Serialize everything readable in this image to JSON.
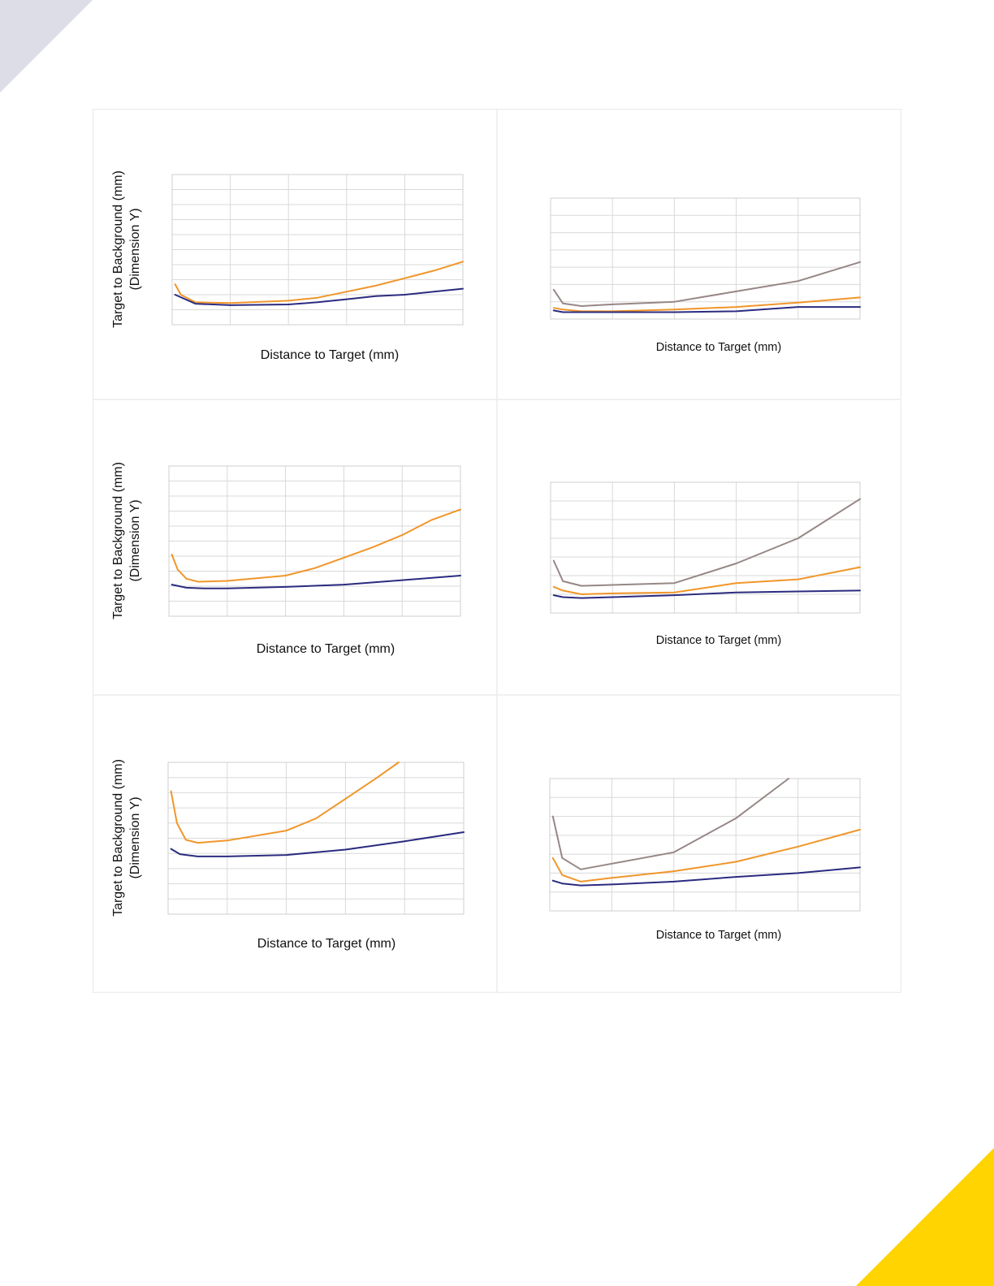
{
  "colors": {
    "orange": "#f0962a",
    "navy": "#2b2b80",
    "gray": "#968785",
    "grid": "#d9d9d9",
    "cell_border": "#ececec",
    "corner_tl": "#dcdde6",
    "corner_br": "#ffd400"
  },
  "chart_data": [
    {
      "type": "line",
      "ylabel": [
        "Target to Background (mm)",
        "(Dimension Y)"
      ],
      "xlabel": "Distance to Target (mm)",
      "xlim": [
        0,
        5
      ],
      "ylim": [
        0,
        10
      ],
      "x_gridlines": 5,
      "y_gridlines": 10,
      "series": [
        {
          "color": "orange",
          "points": [
            [
              0.05,
              2.7
            ],
            [
              0.15,
              2.0
            ],
            [
              0.4,
              1.5
            ],
            [
              1,
              1.45
            ],
            [
              2,
              1.6
            ],
            [
              2.5,
              1.8
            ],
            [
              3,
              2.2
            ],
            [
              3.5,
              2.6
            ],
            [
              4,
              3.1
            ],
            [
              4.5,
              3.6
            ],
            [
              5,
              4.2
            ]
          ]
        },
        {
          "color": "navy",
          "points": [
            [
              0.05,
              2.0
            ],
            [
              0.4,
              1.4
            ],
            [
              1,
              1.3
            ],
            [
              2,
              1.35
            ],
            [
              2.5,
              1.5
            ],
            [
              3,
              1.7
            ],
            [
              3.5,
              1.9
            ],
            [
              4,
              2.0
            ],
            [
              4.5,
              2.2
            ],
            [
              5,
              2.4
            ]
          ]
        }
      ]
    },
    {
      "type": "line",
      "ylabel": [],
      "xlabel": "Distance to Target (mm)",
      "xlim": [
        0,
        5
      ],
      "ylim": [
        0,
        7
      ],
      "x_gridlines": 5,
      "y_gridlines": 7,
      "series": [
        {
          "color": "gray",
          "points": [
            [
              0.05,
              1.7
            ],
            [
              0.2,
              0.9
            ],
            [
              0.5,
              0.75
            ],
            [
              1,
              0.85
            ],
            [
              2,
              1.0
            ],
            [
              3,
              1.6
            ],
            [
              4,
              2.2
            ],
            [
              5,
              3.3
            ]
          ]
        },
        {
          "color": "orange",
          "points": [
            [
              0.05,
              0.65
            ],
            [
              0.2,
              0.55
            ],
            [
              0.5,
              0.45
            ],
            [
              1,
              0.45
            ],
            [
              2,
              0.55
            ],
            [
              3,
              0.7
            ],
            [
              4,
              0.95
            ],
            [
              5,
              1.25
            ]
          ]
        },
        {
          "color": "navy",
          "points": [
            [
              0.05,
              0.5
            ],
            [
              0.2,
              0.4
            ],
            [
              0.5,
              0.4
            ],
            [
              1,
              0.4
            ],
            [
              2,
              0.4
            ],
            [
              3,
              0.45
            ],
            [
              4,
              0.7
            ],
            [
              5,
              0.7
            ]
          ]
        }
      ]
    },
    {
      "type": "line",
      "ylabel": [
        "Target to Background (mm)",
        "(Dimension Y)"
      ],
      "xlabel": "Distance to Target (mm)",
      "xlim": [
        0,
        5
      ],
      "ylim": [
        0,
        10
      ],
      "x_gridlines": 5,
      "y_gridlines": 10,
      "series": [
        {
          "color": "orange",
          "points": [
            [
              0.05,
              4.1
            ],
            [
              0.15,
              3.1
            ],
            [
              0.3,
              2.5
            ],
            [
              0.5,
              2.3
            ],
            [
              1,
              2.35
            ],
            [
              2,
              2.7
            ],
            [
              2.5,
              3.2
            ],
            [
              3,
              3.9
            ],
            [
              3.5,
              4.6
            ],
            [
              4,
              5.4
            ],
            [
              4.5,
              6.4
            ],
            [
              5,
              7.1
            ]
          ]
        },
        {
          "color": "navy",
          "points": [
            [
              0.05,
              2.1
            ],
            [
              0.3,
              1.9
            ],
            [
              0.6,
              1.85
            ],
            [
              1,
              1.85
            ],
            [
              2,
              1.95
            ],
            [
              3,
              2.1
            ],
            [
              4,
              2.4
            ],
            [
              5,
              2.7
            ]
          ]
        }
      ]
    },
    {
      "type": "line",
      "ylabel": [],
      "xlabel": "Distance to Target (mm)",
      "xlim": [
        0,
        5
      ],
      "ylim": [
        0,
        7
      ],
      "x_gridlines": 5,
      "y_gridlines": 7,
      "series": [
        {
          "color": "gray",
          "points": [
            [
              0.05,
              2.8
            ],
            [
              0.2,
              1.7
            ],
            [
              0.5,
              1.45
            ],
            [
              1,
              1.5
            ],
            [
              2,
              1.6
            ],
            [
              3,
              2.65
            ],
            [
              4,
              4.0
            ],
            [
              5,
              6.1
            ]
          ]
        },
        {
          "color": "orange",
          "points": [
            [
              0.05,
              1.4
            ],
            [
              0.2,
              1.2
            ],
            [
              0.5,
              1.0
            ],
            [
              1,
              1.05
            ],
            [
              2,
              1.1
            ],
            [
              3,
              1.6
            ],
            [
              4,
              1.8
            ],
            [
              5,
              2.45
            ]
          ]
        },
        {
          "color": "navy",
          "points": [
            [
              0.05,
              0.95
            ],
            [
              0.2,
              0.85
            ],
            [
              0.5,
              0.8
            ],
            [
              1,
              0.85
            ],
            [
              2,
              0.95
            ],
            [
              3,
              1.1
            ],
            [
              4,
              1.15
            ],
            [
              5,
              1.2
            ]
          ]
        }
      ]
    },
    {
      "type": "line",
      "ylabel": [
        "Target to Background (mm)",
        "(Dimension Y)"
      ],
      "xlabel": "Distance to Target (mm)",
      "xlim": [
        0,
        5
      ],
      "ylim": [
        0,
        10
      ],
      "x_gridlines": 5,
      "y_gridlines": 10,
      "series": [
        {
          "color": "orange",
          "points": [
            [
              0.05,
              8.1
            ],
            [
              0.15,
              6.0
            ],
            [
              0.3,
              4.9
            ],
            [
              0.5,
              4.7
            ],
            [
              1,
              4.85
            ],
            [
              2,
              5.5
            ],
            [
              2.5,
              6.3
            ],
            [
              3,
              7.6
            ],
            [
              3.5,
              8.9
            ],
            [
              3.9,
              10.0
            ]
          ]
        },
        {
          "color": "navy",
          "points": [
            [
              0.05,
              4.3
            ],
            [
              0.2,
              3.95
            ],
            [
              0.5,
              3.8
            ],
            [
              1,
              3.8
            ],
            [
              2,
              3.9
            ],
            [
              3,
              4.25
            ],
            [
              4,
              4.8
            ],
            [
              5,
              5.4
            ]
          ]
        }
      ]
    },
    {
      "type": "line",
      "ylabel": [],
      "xlabel": "Distance to Target (mm)",
      "xlim": [
        0,
        5
      ],
      "ylim": [
        0,
        7
      ],
      "x_gridlines": 5,
      "y_gridlines": 7,
      "series": [
        {
          "color": "gray",
          "points": [
            [
              0.05,
              5.0
            ],
            [
              0.2,
              2.8
            ],
            [
              0.5,
              2.2
            ],
            [
              1,
              2.5
            ],
            [
              2,
              3.1
            ],
            [
              3,
              4.9
            ],
            [
              3.85,
              7.0
            ]
          ]
        },
        {
          "color": "orange",
          "points": [
            [
              0.05,
              2.8
            ],
            [
              0.2,
              1.9
            ],
            [
              0.5,
              1.55
            ],
            [
              1,
              1.75
            ],
            [
              2,
              2.1
            ],
            [
              3,
              2.6
            ],
            [
              4,
              3.4
            ],
            [
              5,
              4.3
            ]
          ]
        },
        {
          "color": "navy",
          "points": [
            [
              0.05,
              1.6
            ],
            [
              0.2,
              1.45
            ],
            [
              0.5,
              1.35
            ],
            [
              1,
              1.4
            ],
            [
              2,
              1.55
            ],
            [
              3,
              1.8
            ],
            [
              4,
              2.0
            ],
            [
              5,
              2.3
            ]
          ]
        }
      ]
    }
  ]
}
